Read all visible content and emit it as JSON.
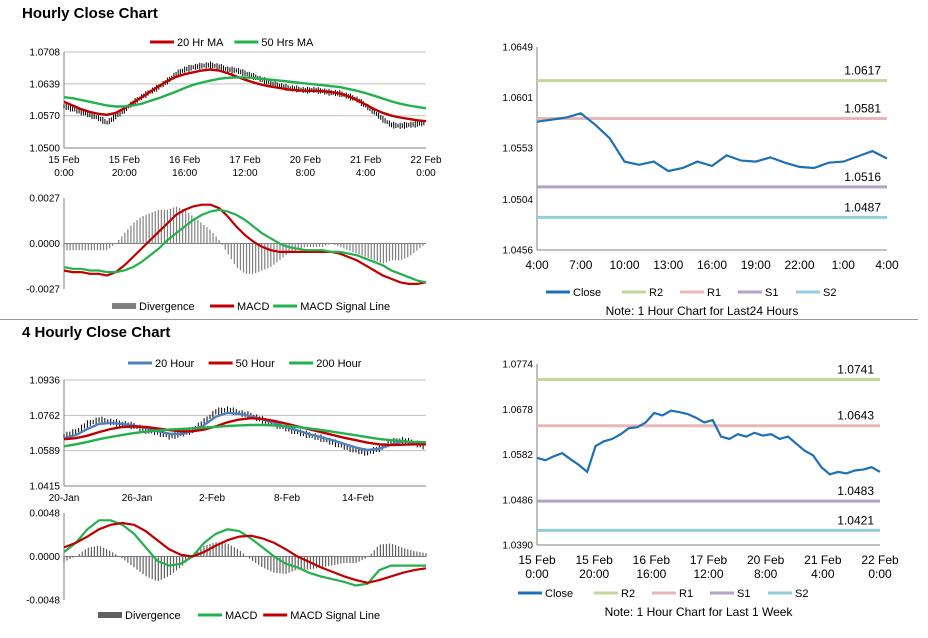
{
  "sections": [
    {
      "title": "Hourly Close Chart"
    },
    {
      "title": "4 Hourly Close Chart"
    }
  ],
  "colors": {
    "ma_red": "#c00000",
    "ma_green": "#22b14c",
    "ma_blue": "#4f81bd",
    "close_line": "#1f6fb5",
    "R2": "#c3d69b",
    "R1": "#e6b9b8",
    "S1": "#b3a2c7",
    "S2": "#92cddc",
    "hist": "#808080"
  },
  "chart_data": [
    {
      "id": "hourly-ma",
      "type": "line",
      "legend": [
        "20 Hr MA",
        "50 Hrs MA"
      ],
      "ylim": [
        1.05,
        1.0708
      ],
      "yticks": [
        "1.0708",
        "1.0639",
        "1.0570",
        "1.0500"
      ],
      "xticks": [
        [
          "15 Feb",
          "0:00"
        ],
        [
          "15 Feb",
          "20:00"
        ],
        [
          "16 Feb",
          "16:00"
        ],
        [
          "17 Feb",
          "12:00"
        ],
        [
          "20 Feb",
          "8:00"
        ],
        [
          "21 Feb",
          "4:00"
        ],
        [
          "22 Feb",
          "0:00"
        ]
      ],
      "price": [
        1.059,
        1.0585,
        1.0578,
        1.0572,
        1.0565,
        1.0555,
        1.0568,
        1.0582,
        1.0598,
        1.061,
        1.0622,
        1.0632,
        1.0645,
        1.066,
        1.067,
        1.0675,
        1.0678,
        1.068,
        1.0676,
        1.067,
        1.0668,
        1.0662,
        1.0655,
        1.0648,
        1.064,
        1.0635,
        1.063,
        1.0628,
        1.0625,
        1.0626,
        1.0623,
        1.062,
        1.0618,
        1.0612,
        1.0605,
        1.0592,
        1.0578,
        1.0562,
        1.055,
        1.0548,
        1.055,
        1.0552,
        1.0555
      ],
      "series": [
        {
          "name": "20 Hr MA",
          "color": "#c00000",
          "values": [
            1.06,
            1.0592,
            1.0584,
            1.0578,
            1.0574,
            1.0572,
            1.0576,
            1.0586,
            1.0598,
            1.061,
            1.0622,
            1.0634,
            1.0645,
            1.0654,
            1.066,
            1.0664,
            1.0668,
            1.067,
            1.0668,
            1.0662,
            1.0655,
            1.0648,
            1.0642,
            1.0637,
            1.0633,
            1.063,
            1.0627,
            1.0625,
            1.0624,
            1.0624,
            1.0623,
            1.0621,
            1.0618,
            1.0612,
            1.0604,
            1.0594,
            1.0584,
            1.0576,
            1.057,
            1.0566,
            1.0563,
            1.056,
            1.0558
          ]
        },
        {
          "name": "50 Hrs MA",
          "color": "#22b14c",
          "values": [
            1.061,
            1.0608,
            1.0604,
            1.06,
            1.0596,
            1.0592,
            1.059,
            1.059,
            1.0592,
            1.0596,
            1.0602,
            1.0608,
            1.0615,
            1.0622,
            1.063,
            1.0637,
            1.0642,
            1.0646,
            1.065,
            1.0652,
            1.0653,
            1.0653,
            1.0652,
            1.065,
            1.0648,
            1.0646,
            1.0644,
            1.0642,
            1.064,
            1.0638,
            1.0636,
            1.0634,
            1.0632,
            1.0628,
            1.0624,
            1.0619,
            1.0613,
            1.0607,
            1.0601,
            1.0596,
            1.0592,
            1.0589,
            1.0586
          ]
        }
      ]
    },
    {
      "id": "hourly-macd",
      "type": "line",
      "legend": [
        "Divergence",
        "MACD",
        "MACD Signal Line"
      ],
      "ylim": [
        -0.0027,
        0.0027
      ],
      "yticks": [
        "0.0027",
        "0.0000",
        "-0.0027"
      ],
      "series": [
        {
          "name": "MACD",
          "color": "#c00000",
          "values": [
            -0.0016,
            -0.0017,
            -0.0017,
            -0.0018,
            -0.0018,
            -0.0019,
            -0.0017,
            -0.0013,
            -0.0008,
            -0.0003,
            0.0002,
            0.0007,
            0.0012,
            0.0017,
            0.002,
            0.0022,
            0.0023,
            0.0023,
            0.0021,
            0.0016,
            0.001,
            0.0005,
            0.0001,
            -0.0002,
            -0.0004,
            -0.0005,
            -0.0005,
            -0.0005,
            -0.0005,
            -0.0005,
            -0.0005,
            -0.0005,
            -0.0006,
            -0.0008,
            -0.001,
            -0.0013,
            -0.0016,
            -0.0019,
            -0.0021,
            -0.0023,
            -0.0024,
            -0.0024,
            -0.0023
          ]
        },
        {
          "name": "MACD Signal Line",
          "color": "#22b14c",
          "values": [
            -0.0014,
            -0.0015,
            -0.0015,
            -0.0016,
            -0.0016,
            -0.0017,
            -0.0017,
            -0.0016,
            -0.0014,
            -0.0011,
            -0.0007,
            -0.0003,
            0.0002,
            0.0006,
            0.001,
            0.0014,
            0.0017,
            0.0019,
            0.002,
            0.0019,
            0.0017,
            0.0014,
            0.001,
            0.0006,
            0.0003,
            0.0,
            -0.0002,
            -0.0003,
            -0.0004,
            -0.0004,
            -0.0004,
            -0.0005,
            -0.0005,
            -0.0006,
            -0.0007,
            -0.0009,
            -0.0011,
            -0.0013,
            -0.0016,
            -0.0018,
            -0.002,
            -0.0022,
            -0.0023
          ]
        }
      ]
    },
    {
      "id": "hourly-close",
      "type": "line",
      "ylim": [
        1.0456,
        1.0649
      ],
      "yticks": [
        "1.0649",
        "1.0601",
        "1.0553",
        "1.0504",
        "1.0456"
      ],
      "xticks": [
        "4:00",
        "7:00",
        "10:00",
        "13:00",
        "16:00",
        "19:00",
        "22:00",
        "1:00",
        "4:00"
      ],
      "levels": [
        {
          "name": "R2",
          "value": 1.0617,
          "label": "1.0617",
          "color": "#c3d69b"
        },
        {
          "name": "R1",
          "value": 1.0581,
          "label": "1.0581",
          "color": "#e6b9b8"
        },
        {
          "name": "S1",
          "value": 1.0516,
          "label": "1.0516",
          "color": "#b3a2c7"
        },
        {
          "name": "S2",
          "value": 1.0487,
          "label": "1.0487",
          "color": "#92cddc"
        }
      ],
      "close": [
        1.0578,
        1.058,
        1.0582,
        1.0586,
        1.0575,
        1.0562,
        1.054,
        1.0537,
        1.054,
        1.0531,
        1.0534,
        1.054,
        1.0536,
        1.0546,
        1.0541,
        1.054,
        1.0544,
        1.0539,
        1.0535,
        1.0534,
        1.0539,
        1.054,
        1.0545,
        1.055,
        1.0543
      ],
      "legend": [
        "Close",
        "R2",
        "R1",
        "S1",
        "S2"
      ],
      "note": "Note: 1 Hour Chart for Last24 Hours"
    },
    {
      "id": "4h-ma",
      "type": "line",
      "legend": [
        "20 Hour",
        "50 Hour",
        "200 Hour"
      ],
      "ylim": [
        1.0415,
        1.0936
      ],
      "yticks": [
        "1.0936",
        "1.0762",
        "1.0589",
        "1.0415"
      ],
      "xticks": [
        "20-Jan",
        "26-Jan",
        "2-Feb",
        "8-Feb",
        "14-Feb"
      ],
      "price": [
        1.066,
        1.068,
        1.072,
        1.074,
        1.073,
        1.072,
        1.071,
        1.069,
        1.068,
        1.066,
        1.067,
        1.069,
        1.073,
        1.078,
        1.079,
        1.0775,
        1.076,
        1.074,
        1.072,
        1.07,
        1.068,
        1.0665,
        1.065,
        1.063,
        1.061,
        1.059,
        1.058,
        1.06,
        1.063,
        1.064,
        1.0625,
        1.061
      ],
      "series": [
        {
          "name": "20 Hour",
          "color": "#4f81bd",
          "values": [
            1.065,
            1.0665,
            1.0695,
            1.072,
            1.0725,
            1.072,
            1.0712,
            1.07,
            1.0685,
            1.0672,
            1.067,
            1.0685,
            1.0715,
            1.0755,
            1.0775,
            1.077,
            1.0758,
            1.0742,
            1.0725,
            1.0706,
            1.0688,
            1.067,
            1.0655,
            1.064,
            1.0622,
            1.0604,
            1.0592,
            1.0598,
            1.0618,
            1.0634,
            1.063,
            1.062
          ]
        },
        {
          "name": "50 Hour",
          "color": "#c00000",
          "values": [
            1.0645,
            1.065,
            1.0662,
            1.068,
            1.0695,
            1.0705,
            1.0708,
            1.0705,
            1.0698,
            1.069,
            1.0684,
            1.0684,
            1.0692,
            1.0708,
            1.0728,
            1.0742,
            1.0748,
            1.0745,
            1.0735,
            1.0722,
            1.0708,
            1.0694,
            1.068,
            1.0666,
            1.0652,
            1.064,
            1.0628,
            1.062,
            1.0616,
            1.0618,
            1.062,
            1.062
          ]
        },
        {
          "name": "200 Hour",
          "color": "#22b14c",
          "values": [
            1.061,
            1.062,
            1.0632,
            1.0645,
            1.0656,
            1.0666,
            1.0675,
            1.0682,
            1.0688,
            1.0692,
            1.0695,
            1.0698,
            1.0702,
            1.0706,
            1.071,
            1.0713,
            1.0715,
            1.0715,
            1.0713,
            1.071,
            1.0705,
            1.0698,
            1.069,
            1.0682,
            1.0673,
            1.0664,
            1.0655,
            1.0646,
            1.064,
            1.0635,
            1.0632,
            1.063
          ]
        }
      ]
    },
    {
      "id": "4h-macd",
      "type": "line",
      "legend": [
        "Divergence",
        "MACD",
        "MACD Signal Line"
      ],
      "ylim": [
        -0.0048,
        0.0048
      ],
      "yticks": [
        "0.0048",
        "0.0000",
        "-0.0048"
      ],
      "series": [
        {
          "name": "MACD",
          "color": "#22b14c",
          "values": [
            0.0005,
            0.0015,
            0.003,
            0.004,
            0.004,
            0.0035,
            0.0025,
            0.001,
            -0.0005,
            -0.001,
            -0.0008,
            0.0,
            0.0015,
            0.0025,
            0.003,
            0.0028,
            0.002,
            0.001,
            0.0,
            -0.0008,
            -0.0012,
            -0.0018,
            -0.0022,
            -0.0025,
            -0.0028,
            -0.0032,
            -0.003,
            -0.0015,
            -0.001,
            -0.001,
            -0.001,
            -0.001
          ]
        },
        {
          "name": "MACD Signal Line",
          "color": "#c00000",
          "values": [
            0.001,
            0.0015,
            0.0022,
            0.003,
            0.0035,
            0.0037,
            0.0035,
            0.0028,
            0.0018,
            0.0008,
            0.0002,
            0.0,
            0.0005,
            0.0012,
            0.0018,
            0.0022,
            0.0023,
            0.002,
            0.0015,
            0.0008,
            0.0,
            -0.0006,
            -0.0012,
            -0.0017,
            -0.0022,
            -0.0026,
            -0.0029,
            -0.0026,
            -0.0022,
            -0.0018,
            -0.0015,
            -0.0013
          ]
        }
      ]
    },
    {
      "id": "4h-close",
      "type": "line",
      "ylim": [
        1.039,
        1.0774
      ],
      "yticks": [
        "1.0774",
        "1.0678",
        "1.0582",
        "1.0486",
        "1.0390"
      ],
      "xticks": [
        [
          "15 Feb",
          "0:00"
        ],
        [
          "15 Feb",
          "20:00"
        ],
        [
          "16 Feb",
          "16:00"
        ],
        [
          "17 Feb",
          "12:00"
        ],
        [
          "20 Feb",
          "8:00"
        ],
        [
          "21 Feb",
          "4:00"
        ],
        [
          "22 Feb",
          "0:00"
        ]
      ],
      "levels": [
        {
          "name": "R2",
          "value": 1.0741,
          "label": "1.0741",
          "color": "#c3d69b"
        },
        {
          "name": "R1",
          "value": 1.0643,
          "label": "1.0643",
          "color": "#e6b9b8"
        },
        {
          "name": "S1",
          "value": 1.0483,
          "label": "1.0483",
          "color": "#b3a2c7"
        },
        {
          "name": "S2",
          "value": 1.0421,
          "label": "1.0421",
          "color": "#92cddc"
        }
      ],
      "close": [
        1.0575,
        1.057,
        1.0578,
        1.0585,
        1.0572,
        1.056,
        1.0545,
        1.06,
        1.061,
        1.0615,
        1.0625,
        1.0638,
        1.064,
        1.065,
        1.067,
        1.0665,
        1.0675,
        1.0672,
        1.0668,
        1.066,
        1.065,
        1.0655,
        1.062,
        1.0615,
        1.0625,
        1.062,
        1.0628,
        1.0622,
        1.0625,
        1.0615,
        1.062,
        1.0605,
        1.059,
        1.058,
        1.0555,
        1.054,
        1.0545,
        1.0542,
        1.0548,
        1.055,
        1.0555,
        1.0545
      ],
      "legend": [
        "Close",
        "R2",
        "R1",
        "S1",
        "S2"
      ],
      "note": "Note: 1 Hour Chart for Last 1 Week"
    }
  ]
}
